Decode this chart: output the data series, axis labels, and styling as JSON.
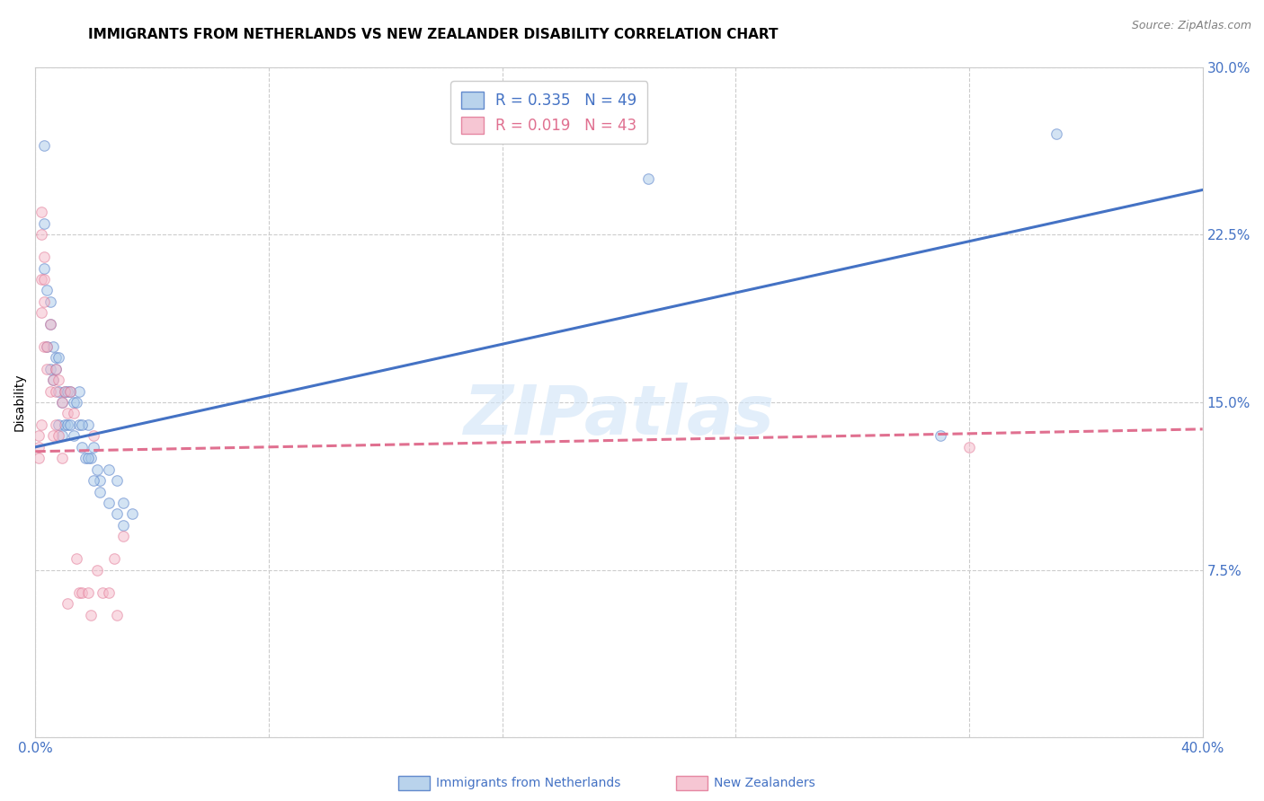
{
  "title": "IMMIGRANTS FROM NETHERLANDS VS NEW ZEALANDER DISABILITY CORRELATION CHART",
  "source": "Source: ZipAtlas.com",
  "ylabel": "Disability",
  "watermark": "ZIPatlas",
  "xlim": [
    0.0,
    0.4
  ],
  "ylim": [
    0.0,
    0.3
  ],
  "xticks": [
    0.0,
    0.08,
    0.16,
    0.24,
    0.32,
    0.4
  ],
  "yticks": [
    0.0,
    0.075,
    0.15,
    0.225,
    0.3
  ],
  "xtick_labels": [
    "0.0%",
    "",
    "",
    "",
    "",
    "40.0%"
  ],
  "ytick_labels": [
    "",
    "7.5%",
    "15.0%",
    "22.5%",
    "30.0%"
  ],
  "blue_R": 0.335,
  "blue_N": 49,
  "pink_R": 0.019,
  "pink_N": 43,
  "blue_color": "#a8c8e8",
  "pink_color": "#f4b8c8",
  "blue_line_color": "#4472c4",
  "pink_line_color": "#e07090",
  "legend_label_blue": "Immigrants from Netherlands",
  "legend_label_pink": "New Zealanders",
  "blue_x": [
    0.003,
    0.003,
    0.003,
    0.004,
    0.004,
    0.005,
    0.005,
    0.005,
    0.006,
    0.006,
    0.007,
    0.007,
    0.008,
    0.008,
    0.008,
    0.009,
    0.009,
    0.01,
    0.01,
    0.011,
    0.011,
    0.012,
    0.012,
    0.013,
    0.013,
    0.014,
    0.015,
    0.016,
    0.017,
    0.018,
    0.019,
    0.02,
    0.021,
    0.022,
    0.025,
    0.028,
    0.03,
    0.033,
    0.015,
    0.016,
    0.018,
    0.02,
    0.022,
    0.025,
    0.028,
    0.03,
    0.21,
    0.31,
    0.35
  ],
  "blue_y": [
    0.265,
    0.23,
    0.21,
    0.2,
    0.175,
    0.195,
    0.185,
    0.165,
    0.175,
    0.16,
    0.17,
    0.165,
    0.17,
    0.155,
    0.14,
    0.15,
    0.135,
    0.155,
    0.14,
    0.155,
    0.14,
    0.155,
    0.14,
    0.15,
    0.135,
    0.15,
    0.14,
    0.13,
    0.125,
    0.14,
    0.125,
    0.13,
    0.12,
    0.115,
    0.12,
    0.115,
    0.105,
    0.1,
    0.155,
    0.14,
    0.125,
    0.115,
    0.11,
    0.105,
    0.1,
    0.095,
    0.25,
    0.135,
    0.27
  ],
  "pink_x": [
    0.001,
    0.001,
    0.001,
    0.002,
    0.002,
    0.002,
    0.002,
    0.002,
    0.003,
    0.003,
    0.003,
    0.003,
    0.004,
    0.004,
    0.005,
    0.005,
    0.006,
    0.006,
    0.007,
    0.007,
    0.007,
    0.008,
    0.008,
    0.009,
    0.009,
    0.01,
    0.011,
    0.011,
    0.012,
    0.013,
    0.014,
    0.015,
    0.016,
    0.018,
    0.019,
    0.02,
    0.021,
    0.023,
    0.025,
    0.027,
    0.028,
    0.03,
    0.32
  ],
  "pink_y": [
    0.135,
    0.13,
    0.125,
    0.235,
    0.225,
    0.205,
    0.19,
    0.14,
    0.215,
    0.205,
    0.195,
    0.175,
    0.175,
    0.165,
    0.185,
    0.155,
    0.16,
    0.135,
    0.165,
    0.155,
    0.14,
    0.16,
    0.135,
    0.15,
    0.125,
    0.155,
    0.145,
    0.06,
    0.155,
    0.145,
    0.08,
    0.065,
    0.065,
    0.065,
    0.055,
    0.135,
    0.075,
    0.065,
    0.065,
    0.08,
    0.055,
    0.09,
    0.13
  ],
  "blue_line_y_at_0": 0.13,
  "blue_line_y_at_40": 0.245,
  "pink_line_y_at_0": 0.128,
  "pink_line_y_at_40": 0.138,
  "tick_color": "#4472c4",
  "grid_color": "#cccccc",
  "background_color": "#ffffff",
  "title_fontsize": 11,
  "axis_label_fontsize": 10,
  "tick_fontsize": 11,
  "legend_fontsize": 12,
  "marker_size": 70,
  "marker_alpha": 0.5,
  "line_width": 2.2
}
